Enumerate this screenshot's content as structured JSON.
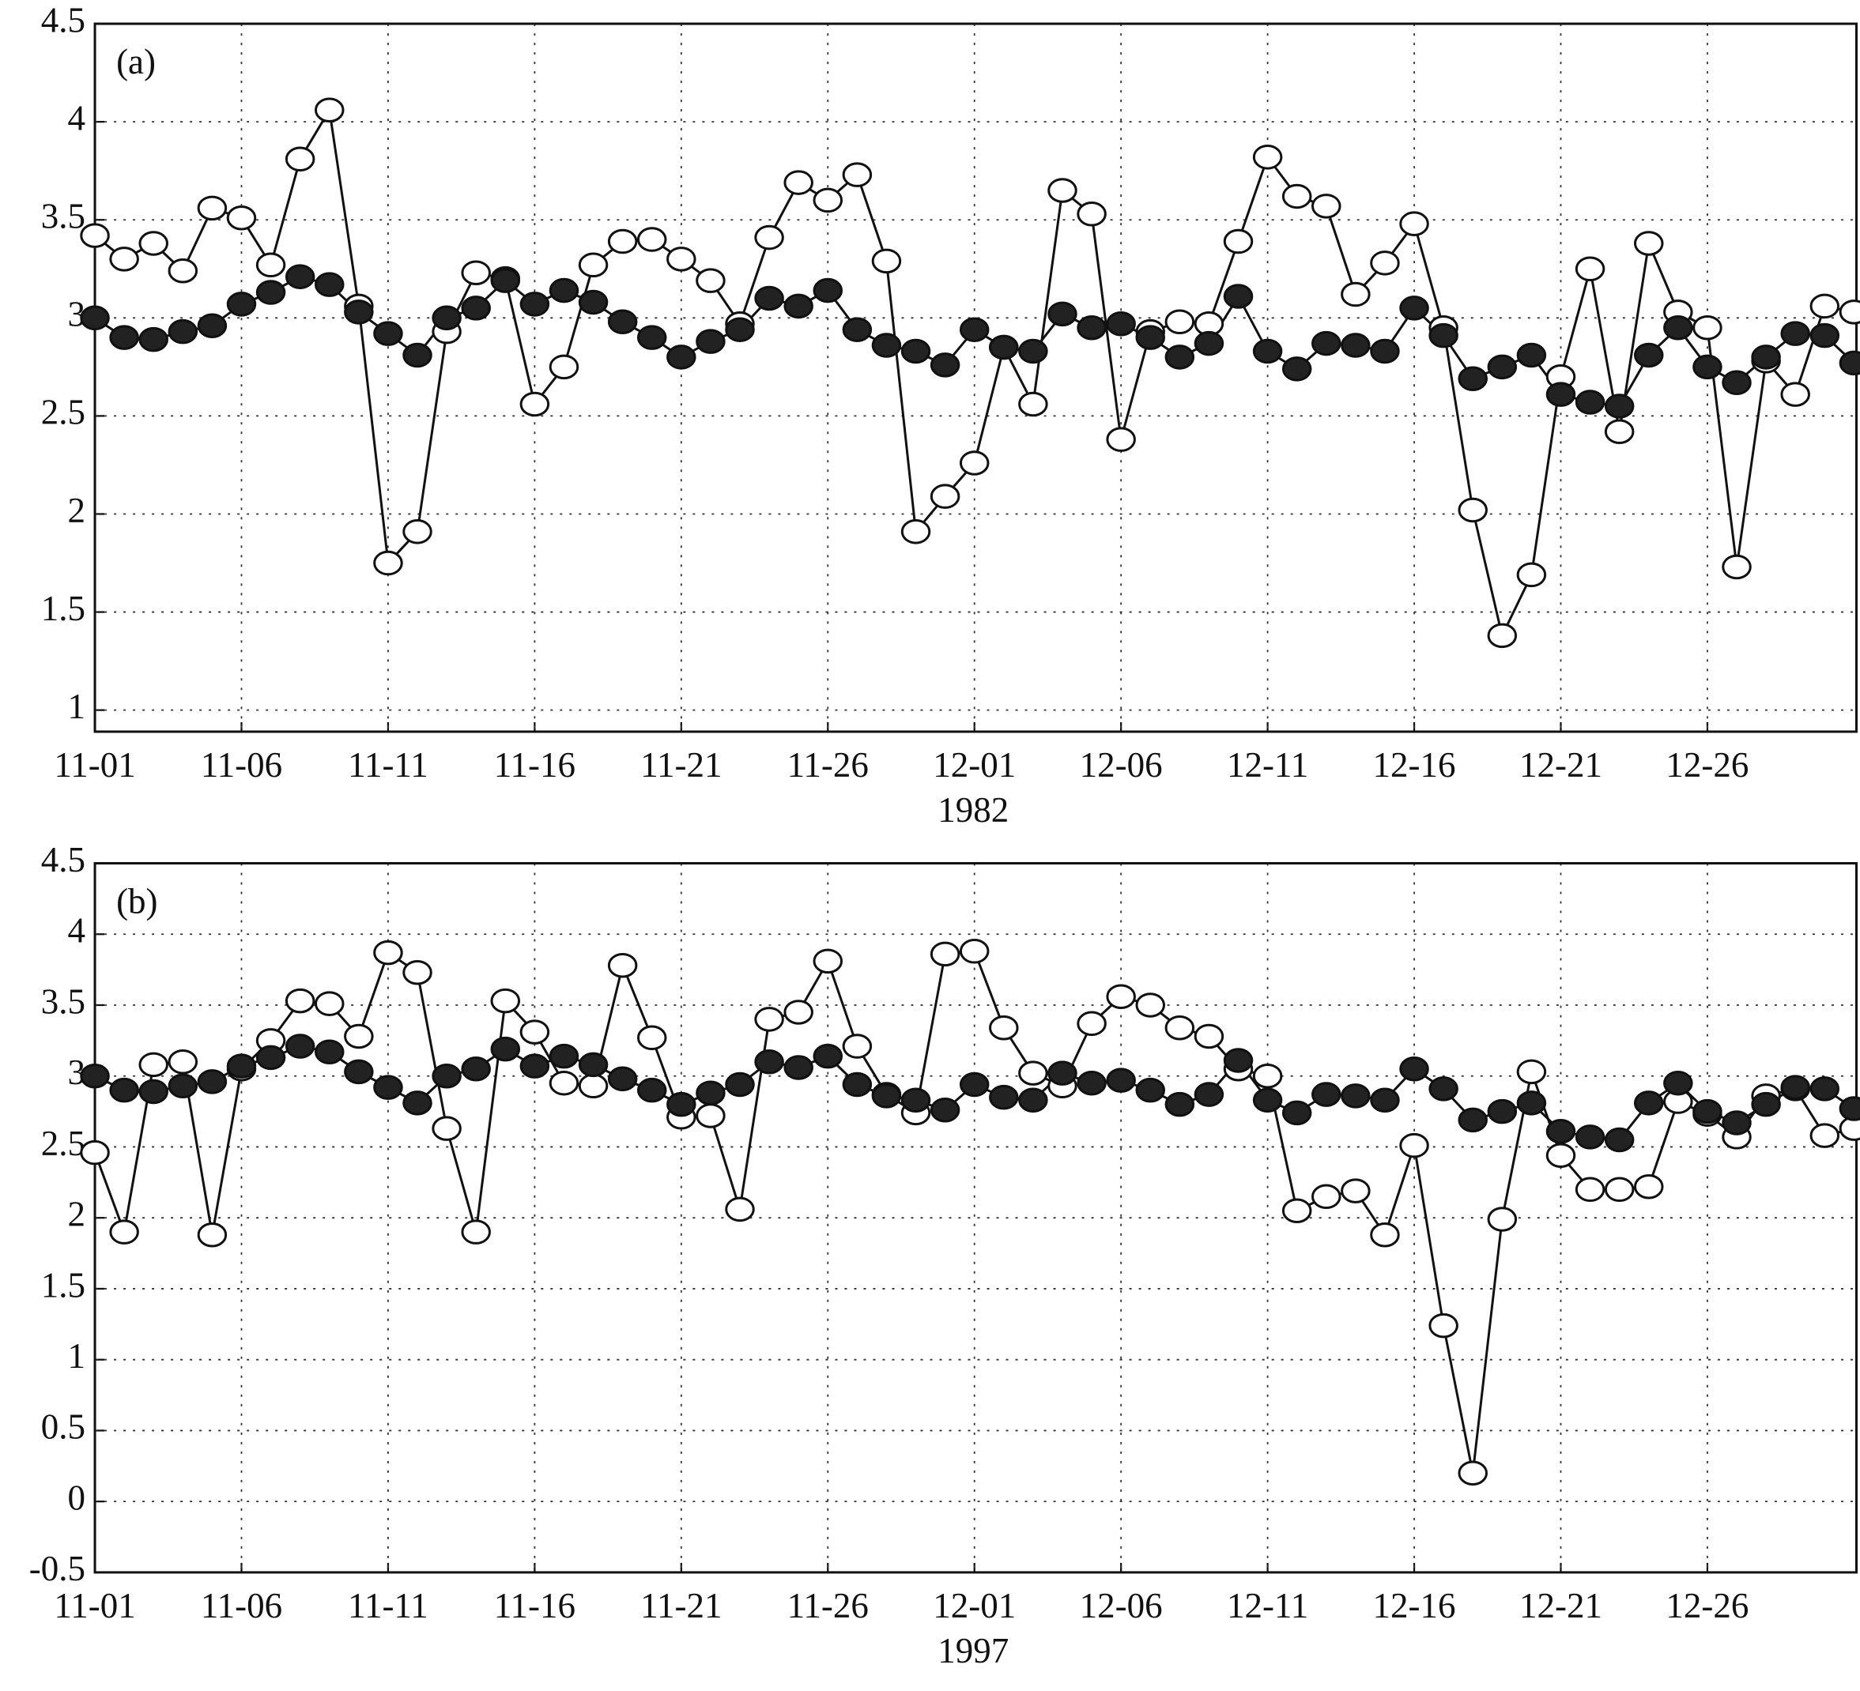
{
  "chart_data": [
    {
      "type": "line",
      "annotation": "(a)",
      "xlabel": "1982",
      "categories": [
        "11-01",
        null,
        null,
        null,
        null,
        "11-06",
        null,
        null,
        null,
        null,
        "11-11",
        null,
        null,
        null,
        null,
        "11-16",
        null,
        null,
        null,
        null,
        "11-21",
        null,
        null,
        null,
        null,
        "11-26",
        null,
        null,
        null,
        null,
        "12-01",
        null,
        null,
        null,
        null,
        "12-06",
        null,
        null,
        null,
        null,
        "12-11",
        null,
        null,
        null,
        null,
        "12-16",
        null,
        null,
        null,
        null,
        "12-21",
        null,
        null,
        null,
        null,
        "12-26",
        null,
        null,
        null,
        null,
        null
      ],
      "ylim": [
        0.89,
        4.5
      ],
      "yticks": [
        1,
        1.5,
        2,
        2.5,
        3,
        3.5,
        4,
        4.5
      ],
      "grid": true,
      "series": [
        {
          "color": "#ffffff",
          "values": [
            3.42,
            3.3,
            3.38,
            3.24,
            3.56,
            3.51,
            3.27,
            3.81,
            4.06,
            3.06,
            1.75,
            1.91,
            2.93,
            3.23,
            3.2,
            2.56,
            2.75,
            3.27,
            3.39,
            3.4,
            3.3,
            3.19,
            2.97,
            3.41,
            3.69,
            3.6,
            3.73,
            3.29,
            1.91,
            2.09,
            2.26,
            2.85,
            2.56,
            3.65,
            3.53,
            2.38,
            2.93,
            2.98,
            2.97,
            3.39,
            3.82,
            3.62,
            3.57,
            3.12,
            3.28,
            3.48,
            2.95,
            2.02,
            1.38,
            1.69,
            2.7,
            3.25,
            2.42,
            3.38,
            3.03,
            2.95,
            1.73,
            2.78,
            2.61,
            3.06,
            3.03
          ]
        },
        {
          "color": "#222222",
          "values": [
            3.0,
            2.9,
            2.89,
            2.93,
            2.96,
            3.07,
            3.13,
            3.21,
            3.17,
            3.03,
            2.92,
            2.81,
            3.0,
            3.05,
            3.19,
            3.07,
            3.14,
            3.08,
            2.98,
            2.9,
            2.8,
            2.88,
            2.94,
            3.1,
            3.06,
            3.14,
            2.94,
            2.86,
            2.83,
            2.76,
            2.94,
            2.85,
            2.83,
            3.02,
            2.95,
            2.97,
            2.9,
            2.8,
            2.87,
            3.11,
            2.83,
            2.74,
            2.87,
            2.86,
            2.83,
            3.05,
            2.91,
            2.69,
            2.75,
            2.81,
            2.61,
            2.57,
            2.55,
            2.81,
            2.95,
            2.75,
            2.67,
            2.8,
            2.92,
            2.91,
            2.77
          ]
        }
      ]
    },
    {
      "type": "line",
      "annotation": "(b)",
      "xlabel": "1997",
      "categories": [
        "11-01",
        null,
        null,
        null,
        null,
        "11-06",
        null,
        null,
        null,
        null,
        "11-11",
        null,
        null,
        null,
        null,
        "11-16",
        null,
        null,
        null,
        null,
        "11-21",
        null,
        null,
        null,
        null,
        "11-26",
        null,
        null,
        null,
        null,
        "12-01",
        null,
        null,
        null,
        null,
        "12-06",
        null,
        null,
        null,
        null,
        "12-11",
        null,
        null,
        null,
        null,
        "12-16",
        null,
        null,
        null,
        null,
        "12-21",
        null,
        null,
        null,
        null,
        "12-26",
        null,
        null,
        null,
        null,
        null
      ],
      "ylim": [
        -0.5,
        4.5
      ],
      "yticks": [
        -0.5,
        0,
        0.5,
        1,
        1.5,
        2,
        2.5,
        3,
        3.5,
        4,
        4.5
      ],
      "grid": true,
      "series": [
        {
          "color": "#ffffff",
          "values": [
            2.46,
            1.9,
            3.08,
            3.1,
            1.88,
            3.05,
            3.25,
            3.53,
            3.51,
            3.28,
            3.87,
            3.73,
            2.63,
            1.9,
            3.53,
            3.31,
            2.95,
            2.93,
            3.78,
            3.27,
            2.71,
            2.72,
            2.06,
            3.4,
            3.45,
            3.81,
            3.21,
            2.87,
            2.74,
            3.86,
            3.88,
            3.34,
            3.02,
            2.93,
            3.37,
            3.56,
            3.5,
            3.34,
            3.28,
            3.05,
            3.0,
            2.05,
            2.15,
            2.19,
            1.88,
            2.51,
            1.24,
            0.2,
            1.99,
            3.03,
            2.44,
            2.2,
            2.2,
            2.22,
            2.82,
            2.73,
            2.57,
            2.86,
            2.91,
            2.58,
            2.63
          ]
        },
        {
          "color": "#222222",
          "values": [
            3.0,
            2.9,
            2.89,
            2.93,
            2.96,
            3.07,
            3.13,
            3.21,
            3.17,
            3.03,
            2.92,
            2.81,
            3.0,
            3.05,
            3.19,
            3.07,
            3.14,
            3.08,
            2.98,
            2.9,
            2.8,
            2.88,
            2.94,
            3.1,
            3.06,
            3.14,
            2.94,
            2.86,
            2.83,
            2.76,
            2.94,
            2.85,
            2.83,
            3.02,
            2.95,
            2.97,
            2.9,
            2.8,
            2.87,
            3.11,
            2.83,
            2.74,
            2.87,
            2.86,
            2.83,
            3.05,
            2.91,
            2.69,
            2.75,
            2.81,
            2.61,
            2.57,
            2.55,
            2.81,
            2.95,
            2.75,
            2.67,
            2.8,
            2.92,
            2.91,
            2.77
          ]
        }
      ]
    }
  ]
}
